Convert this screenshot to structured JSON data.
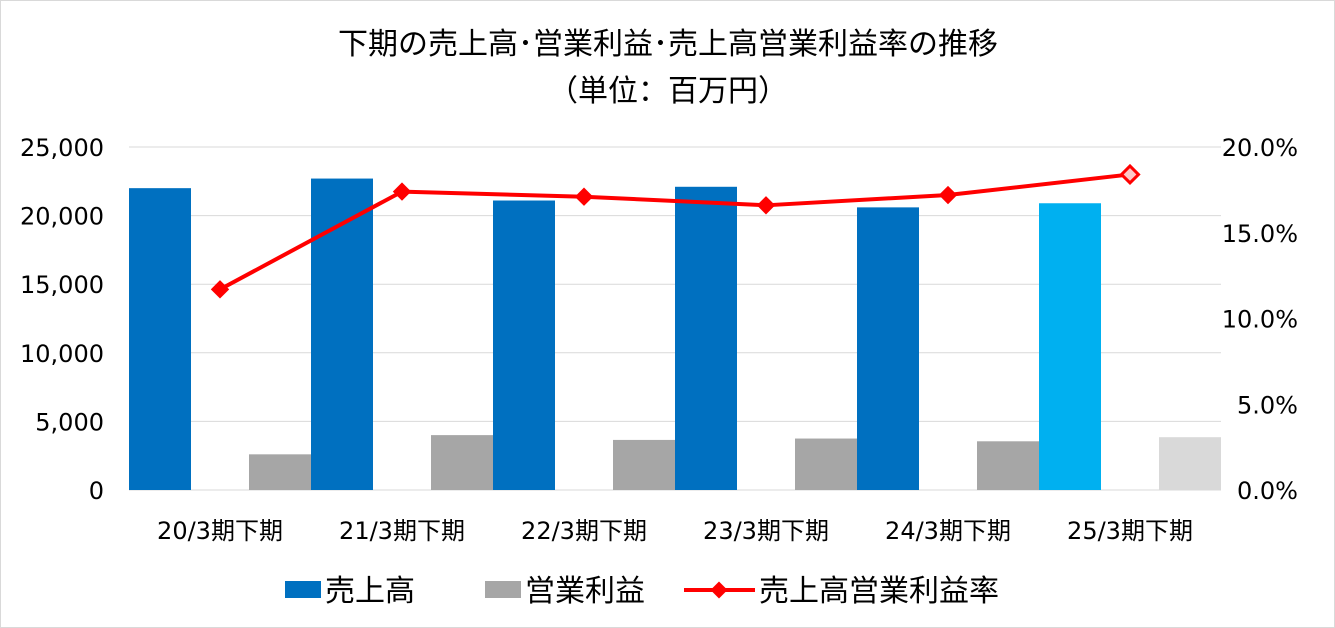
{
  "chart_data": {
    "type": "bar",
    "title": "下期の売上高･営業利益･売上高営業利益率の推移",
    "subtitle": "（単位：百万円）",
    "categories": [
      "20/3期下期",
      "21/3期下期",
      "22/3期下期",
      "23/3期下期",
      "24/3期下期",
      "25/3期下期"
    ],
    "series": [
      {
        "name": "売上高",
        "type": "bar",
        "axis": "left",
        "values": [
          22000,
          22700,
          21100,
          22100,
          20600,
          20900
        ],
        "colors": [
          "#0070C0",
          "#0070C0",
          "#0070C0",
          "#0070C0",
          "#0070C0",
          "#00B0F0"
        ]
      },
      {
        "name": "営業利益",
        "type": "bar",
        "axis": "left",
        "values": [
          2600,
          4000,
          3650,
          3750,
          3550,
          3850
        ],
        "colors": [
          "#A6A6A6",
          "#A6A6A6",
          "#A6A6A6",
          "#A6A6A6",
          "#A6A6A6",
          "#D9D9D9"
        ]
      },
      {
        "name": "売上高営業利益率",
        "type": "line",
        "axis": "right",
        "values": [
          11.7,
          17.4,
          17.1,
          16.6,
          17.2,
          18.4
        ],
        "color": "#FF0000"
      }
    ],
    "y_left": {
      "ylim": [
        0,
        25000
      ],
      "ticks": [
        0,
        5000,
        10000,
        15000,
        20000,
        25000
      ],
      "tick_labels": [
        "0",
        "5,000",
        "10,000",
        "15,000",
        "20,000",
        "25,000"
      ]
    },
    "y_right": {
      "ylim": [
        0,
        20
      ],
      "ticks": [
        0,
        5,
        10,
        15,
        20
      ],
      "tick_labels": [
        "0.0%",
        "5.0%",
        "10.0%",
        "15.0%",
        "20.0%"
      ]
    },
    "grid": true,
    "legend_position": "bottom"
  }
}
